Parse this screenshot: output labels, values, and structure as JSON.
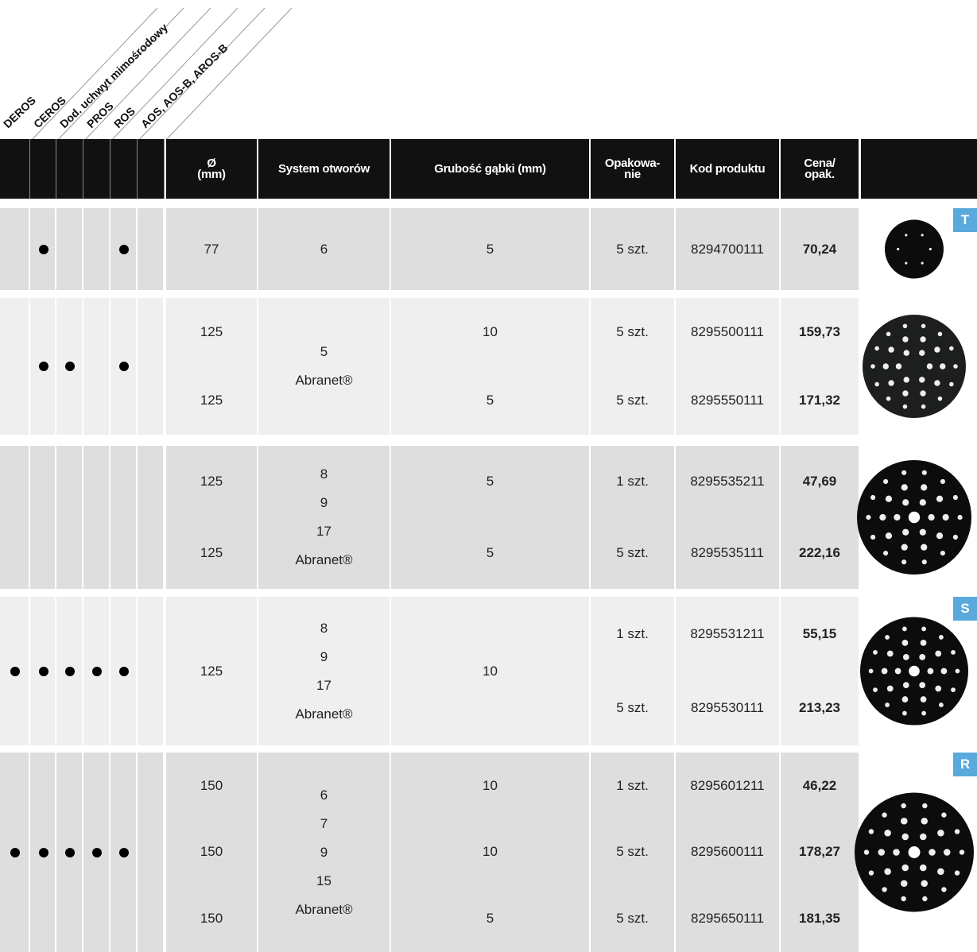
{
  "tool_labels": [
    "DEROS",
    "CEROS",
    "Dod. uchwyt mimośrodowy",
    "PROS",
    "ROS",
    "AOS, AOS-B, AROS-B"
  ],
  "headers": [
    [
      "Ø",
      "(mm)"
    ],
    [
      "System otworów"
    ],
    [
      "Grubość gąbki  (mm)"
    ],
    [
      "Opakowa-",
      "nie"
    ],
    [
      "Kod produktu"
    ],
    [
      "Cena/",
      "opak."
    ]
  ],
  "groups": [
    {
      "tools": [
        false,
        true,
        false,
        false,
        true,
        false
      ],
      "diameter": [
        "77"
      ],
      "holes": [
        "6"
      ],
      "thickness": [
        "5"
      ],
      "packaging": [
        "5 szt."
      ],
      "codes": [
        "8294700111"
      ],
      "prices": [
        "70,24"
      ],
      "badge": "T"
    },
    {
      "tools": [
        false,
        true,
        true,
        false,
        true,
        false
      ],
      "diameter": [
        "125",
        "125"
      ],
      "holes": [
        "5",
        "Abranet®"
      ],
      "thickness": [
        "10",
        "5"
      ],
      "packaging": [
        "5 szt.",
        "5 szt."
      ],
      "codes": [
        "8295500111",
        "8295550111"
      ],
      "prices": [
        "159,73",
        "171,32"
      ]
    },
    {
      "tools": [
        false,
        false,
        false,
        false,
        false,
        false
      ],
      "diameter": [
        "125",
        "125"
      ],
      "holes": [
        "8",
        "9",
        "17",
        "Abranet®"
      ],
      "thickness": [
        "5",
        "5"
      ],
      "packaging": [
        "1 szt.",
        "5 szt."
      ],
      "codes": [
        "8295535211",
        "8295535111"
      ],
      "prices": [
        "47,69",
        "222,16"
      ]
    },
    {
      "tools": [
        true,
        true,
        true,
        true,
        true,
        false
      ],
      "diameter": [
        "125"
      ],
      "holes": [
        "8",
        "9",
        "17",
        "Abranet®"
      ],
      "thickness": [
        "10"
      ],
      "packaging": [
        "1 szt.",
        "5 szt."
      ],
      "codes": [
        "8295531211",
        "8295530111"
      ],
      "prices": [
        "55,15",
        "213,23"
      ],
      "badge": "S"
    },
    {
      "tools": [
        true,
        true,
        true,
        true,
        true,
        false
      ],
      "diameter": [
        "150",
        "150",
        "150"
      ],
      "holes": [
        "6",
        "7",
        "9",
        "15",
        "Abranet®"
      ],
      "thickness": [
        "10",
        "10",
        "5"
      ],
      "packaging": [
        "1 szt.",
        "5 szt.",
        "5 szt."
      ],
      "codes": [
        "8295601211",
        "8295600111",
        "8295650111"
      ],
      "prices": [
        "46,22",
        "178,27",
        "181,35"
      ],
      "badge": "R"
    }
  ]
}
